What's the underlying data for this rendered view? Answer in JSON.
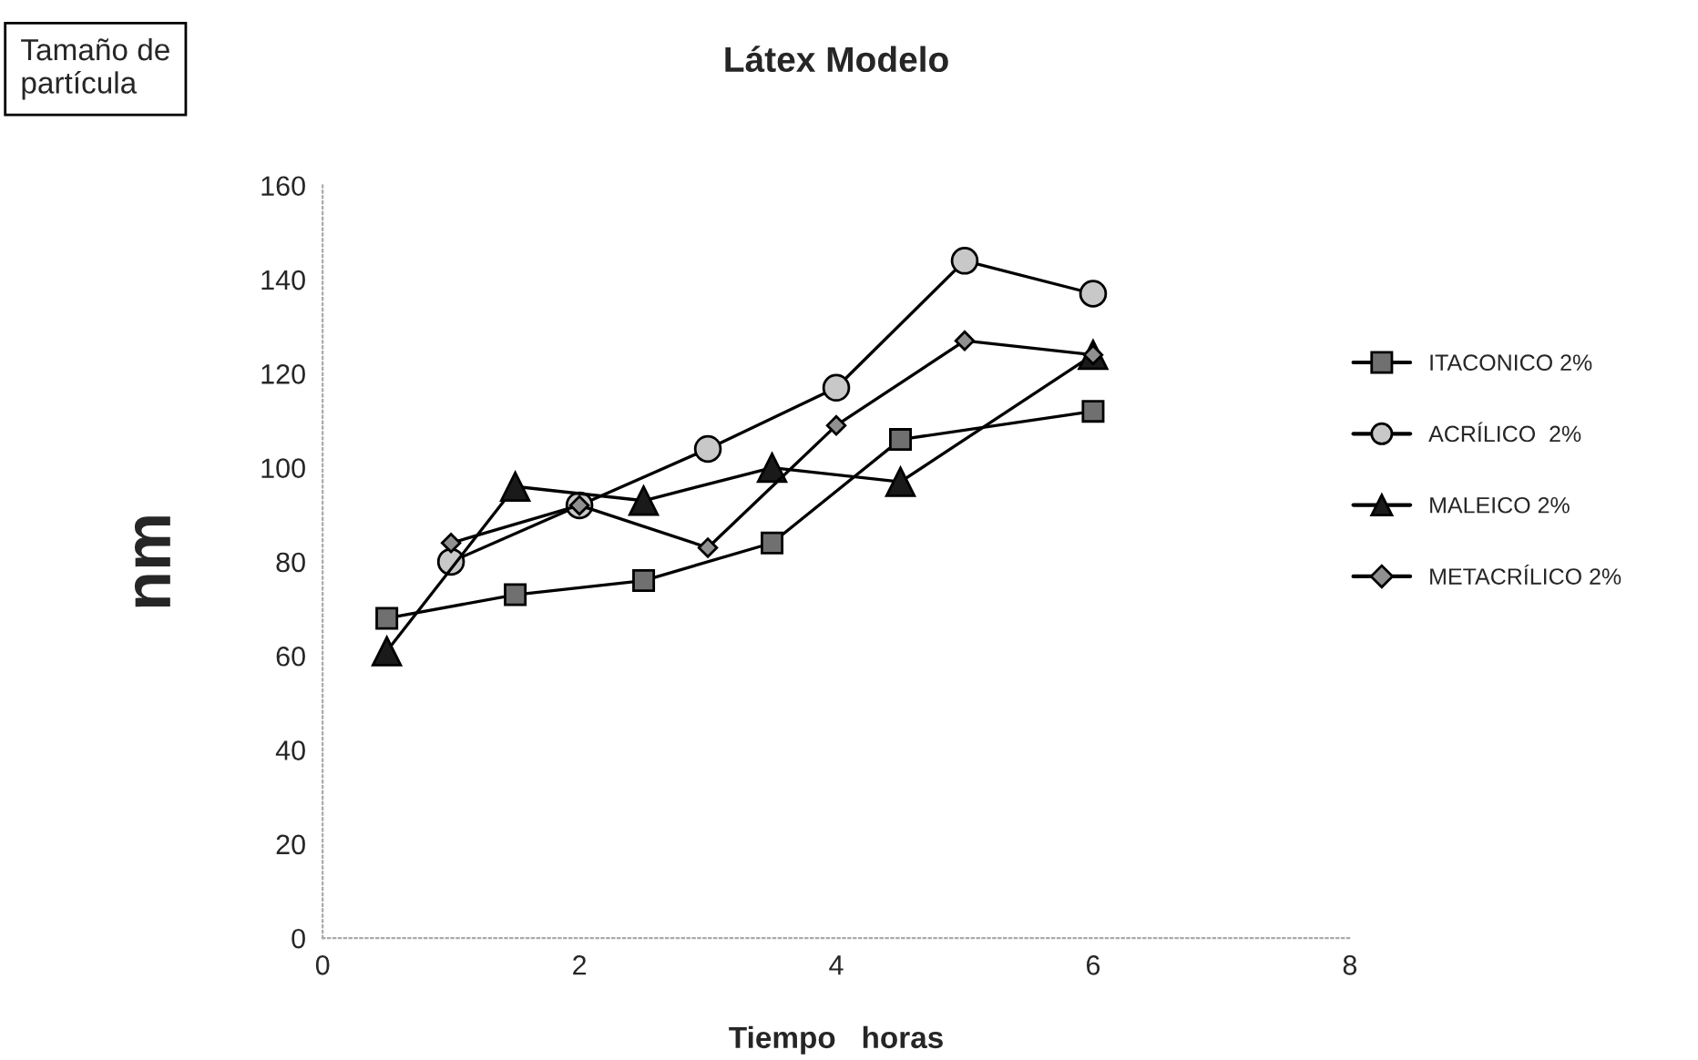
{
  "chart_data": {
    "type": "line",
    "title": "Látex Modelo",
    "xlabel": "Tiempo   horas",
    "ylabel": "nm",
    "annotations": [
      "Tamaño de\npartícula"
    ],
    "xlim": [
      0,
      8
    ],
    "xticks": [
      0,
      2,
      4,
      6,
      8
    ],
    "ylim": [
      0,
      160
    ],
    "yticks": [
      0,
      20,
      40,
      60,
      80,
      100,
      120,
      140,
      160
    ],
    "grid": false,
    "legend": "right",
    "line_style": "solid",
    "series": [
      {
        "name": "ITACONICO 2%",
        "color": "#707070",
        "marker": "square",
        "x": [
          0.5,
          1.5,
          2.5,
          3.5,
          4.5,
          6
        ],
        "values": [
          68,
          73,
          76,
          84,
          106,
          112
        ]
      },
      {
        "name": "ACRÍLICO  2%",
        "color": "#c8c8c8",
        "marker": "circle",
        "x": [
          1,
          2,
          3,
          4,
          5,
          6
        ],
        "values": [
          80,
          92,
          104,
          117,
          144,
          137
        ]
      },
      {
        "name": "MALEICO 2%",
        "color": "#1a1a1a",
        "marker": "triangle",
        "x": [
          0.5,
          1.5,
          2.5,
          3.5,
          4.5,
          6
        ],
        "values": [
          61,
          96,
          93,
          100,
          97,
          124
        ]
      },
      {
        "name": "METACRÍLICO 2%",
        "color": "#909090",
        "marker": "diamond",
        "x": [
          1,
          2,
          3,
          4,
          5,
          6
        ],
        "values": [
          84,
          92,
          83,
          109,
          127,
          124
        ]
      }
    ]
  }
}
